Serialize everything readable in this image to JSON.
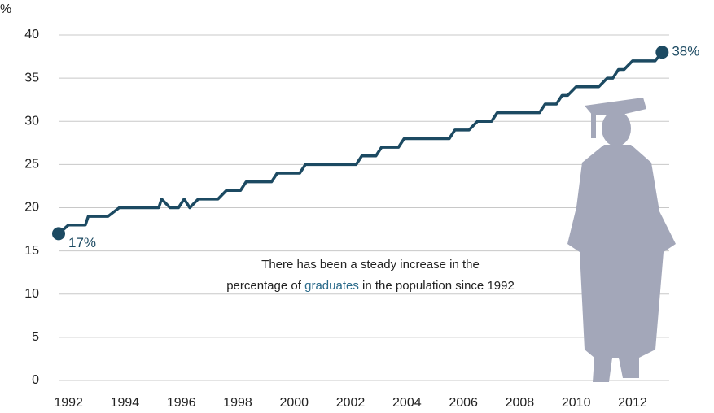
{
  "chart_data": {
    "type": "line",
    "y_label": "%",
    "x": [
      1991.65,
      1992.0,
      1992.6,
      1992.7,
      1993.4,
      1993.8,
      1995.2,
      1995.3,
      1995.6,
      1995.9,
      1996.1,
      1996.3,
      1996.6,
      1997.3,
      1997.6,
      1998.1,
      1998.3,
      1999.2,
      1999.4,
      2000.2,
      2000.4,
      2002.2,
      2002.4,
      2002.9,
      2003.1,
      2003.7,
      2003.9,
      2005.5,
      2005.7,
      2006.2,
      2006.5,
      2007.0,
      2007.2,
      2008.7,
      2008.9,
      2009.3,
      2009.5,
      2009.7,
      2010.0,
      2010.8,
      2011.1,
      2011.3,
      2011.5,
      2011.7,
      2012.0,
      2012.8,
      2013.05
    ],
    "series": [
      {
        "name": "Graduates",
        "color": "#1c4a62",
        "values": [
          17,
          18,
          18,
          19,
          19,
          20,
          20,
          21,
          20,
          20,
          21,
          20,
          21,
          21,
          22,
          22,
          23,
          23,
          24,
          24,
          25,
          25,
          26,
          26,
          27,
          27,
          28,
          28,
          29,
          29,
          30,
          30,
          31,
          31,
          32,
          32,
          33,
          33,
          34,
          34,
          35,
          35,
          36,
          36,
          37,
          37,
          38
        ],
        "value_labels": [
          "17%",
          null,
          null,
          null,
          null,
          null,
          null,
          null,
          null,
          null,
          null,
          null,
          null,
          null,
          null,
          null,
          null,
          null,
          null,
          null,
          null,
          null,
          null,
          null,
          null,
          null,
          null,
          null,
          null,
          null,
          null,
          null,
          null,
          null,
          null,
          null,
          null,
          null,
          null,
          null,
          null,
          null,
          null,
          null,
          null,
          null,
          "38%"
        ]
      }
    ],
    "xlim": [
      1991.65,
      2013.3
    ],
    "xticks": [
      1992,
      1994,
      1996,
      1998,
      2000,
      2002,
      2004,
      2006,
      2008,
      2010,
      2012
    ],
    "ylim": [
      0,
      40
    ],
    "yticks": [
      0,
      5,
      10,
      15,
      20,
      25,
      30,
      35,
      40
    ],
    "grid": true,
    "annotation": {
      "line1": "There has been a steady increase in the",
      "before": "percentage of",
      "highlight": "graduates",
      "after": "in the population since 1992",
      "highlight_color": "#2a6a8a"
    }
  }
}
